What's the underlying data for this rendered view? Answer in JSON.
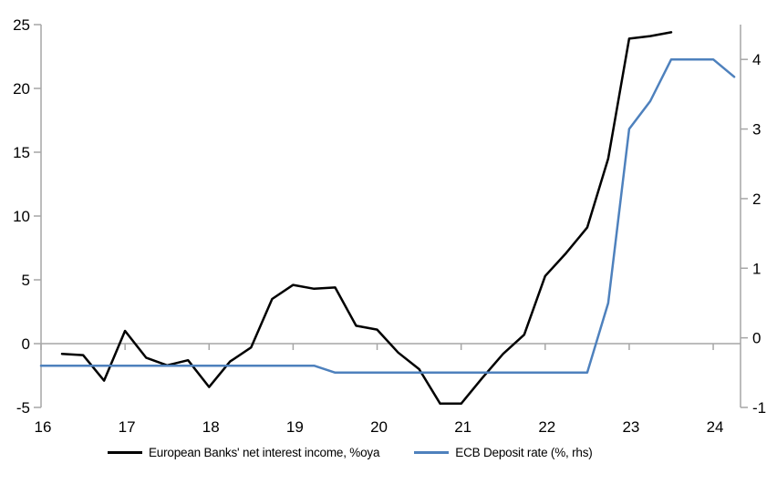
{
  "chart_data": {
    "type": "line",
    "title": "",
    "x_axis": {
      "range": [
        16,
        24.325
      ],
      "tick_values": [
        16,
        17,
        18,
        19,
        20,
        21,
        22,
        23,
        24
      ],
      "tick_labels": [
        "16",
        "17",
        "18",
        "19",
        "20",
        "21",
        "22",
        "23",
        "24"
      ]
    },
    "left_axis": {
      "range": [
        -5,
        25
      ],
      "tick_values": [
        -5,
        0,
        5,
        10,
        15,
        20,
        25
      ],
      "tick_labels": [
        "-5",
        "0",
        "5",
        "10",
        "15",
        "20",
        "25"
      ]
    },
    "right_axis": {
      "range": [
        -1,
        4.5
      ],
      "tick_values": [
        -1,
        0,
        1,
        2,
        3,
        4
      ],
      "tick_labels": [
        "-1",
        "0",
        "1",
        "2",
        "3",
        "4"
      ]
    },
    "grid": "zero-line-only",
    "legend_position": "bottom",
    "colors": {
      "axis": "#a6a6a6",
      "text": "#000000",
      "series_black": "#000000",
      "series_blue": "#4e81bd"
    },
    "series": [
      {
        "name": "European Banks' net interest income, %oya",
        "axis": "left",
        "color": "#000000",
        "x": [
          16.25,
          16.5,
          16.75,
          17.0,
          17.25,
          17.5,
          17.75,
          18.0,
          18.25,
          18.5,
          18.75,
          19.0,
          19.25,
          19.5,
          19.75,
          20.0,
          20.25,
          20.5,
          20.75,
          21.0,
          21.25,
          21.5,
          21.75,
          22.0,
          22.25,
          22.5,
          22.75,
          23.0,
          23.25,
          23.5
        ],
        "values": [
          -0.8,
          -0.9,
          -2.9,
          1.0,
          -1.1,
          -1.7,
          -1.3,
          -3.4,
          -1.4,
          -0.3,
          3.5,
          4.6,
          4.3,
          4.4,
          1.4,
          1.1,
          -0.7,
          -2.0,
          -4.7,
          -4.7,
          -2.7,
          -0.8,
          0.7,
          5.3,
          7.1,
          9.1,
          14.5,
          23.9,
          24.1,
          24.4
        ]
      },
      {
        "name": "ECB Deposit rate (%, rhs)",
        "axis": "right",
        "color": "#4e81bd",
        "x": [
          16.0,
          16.25,
          16.5,
          16.75,
          17.0,
          17.25,
          17.5,
          17.75,
          18.0,
          18.25,
          18.5,
          18.75,
          19.0,
          19.25,
          19.5,
          19.75,
          20.0,
          20.25,
          20.5,
          20.75,
          21.0,
          21.25,
          21.5,
          21.75,
          22.0,
          22.25,
          22.5,
          22.75,
          23.0,
          23.25,
          23.5,
          23.75,
          24.0,
          24.25
        ],
        "values": [
          -0.4,
          -0.4,
          -0.4,
          -0.4,
          -0.4,
          -0.4,
          -0.4,
          -0.4,
          -0.4,
          -0.4,
          -0.4,
          -0.4,
          -0.4,
          -0.4,
          -0.5,
          -0.5,
          -0.5,
          -0.5,
          -0.5,
          -0.5,
          -0.5,
          -0.5,
          -0.5,
          -0.5,
          -0.5,
          -0.5,
          -0.5,
          0.5,
          3.0,
          3.4,
          4.0,
          4.0,
          4.0,
          3.75
        ]
      }
    ]
  }
}
